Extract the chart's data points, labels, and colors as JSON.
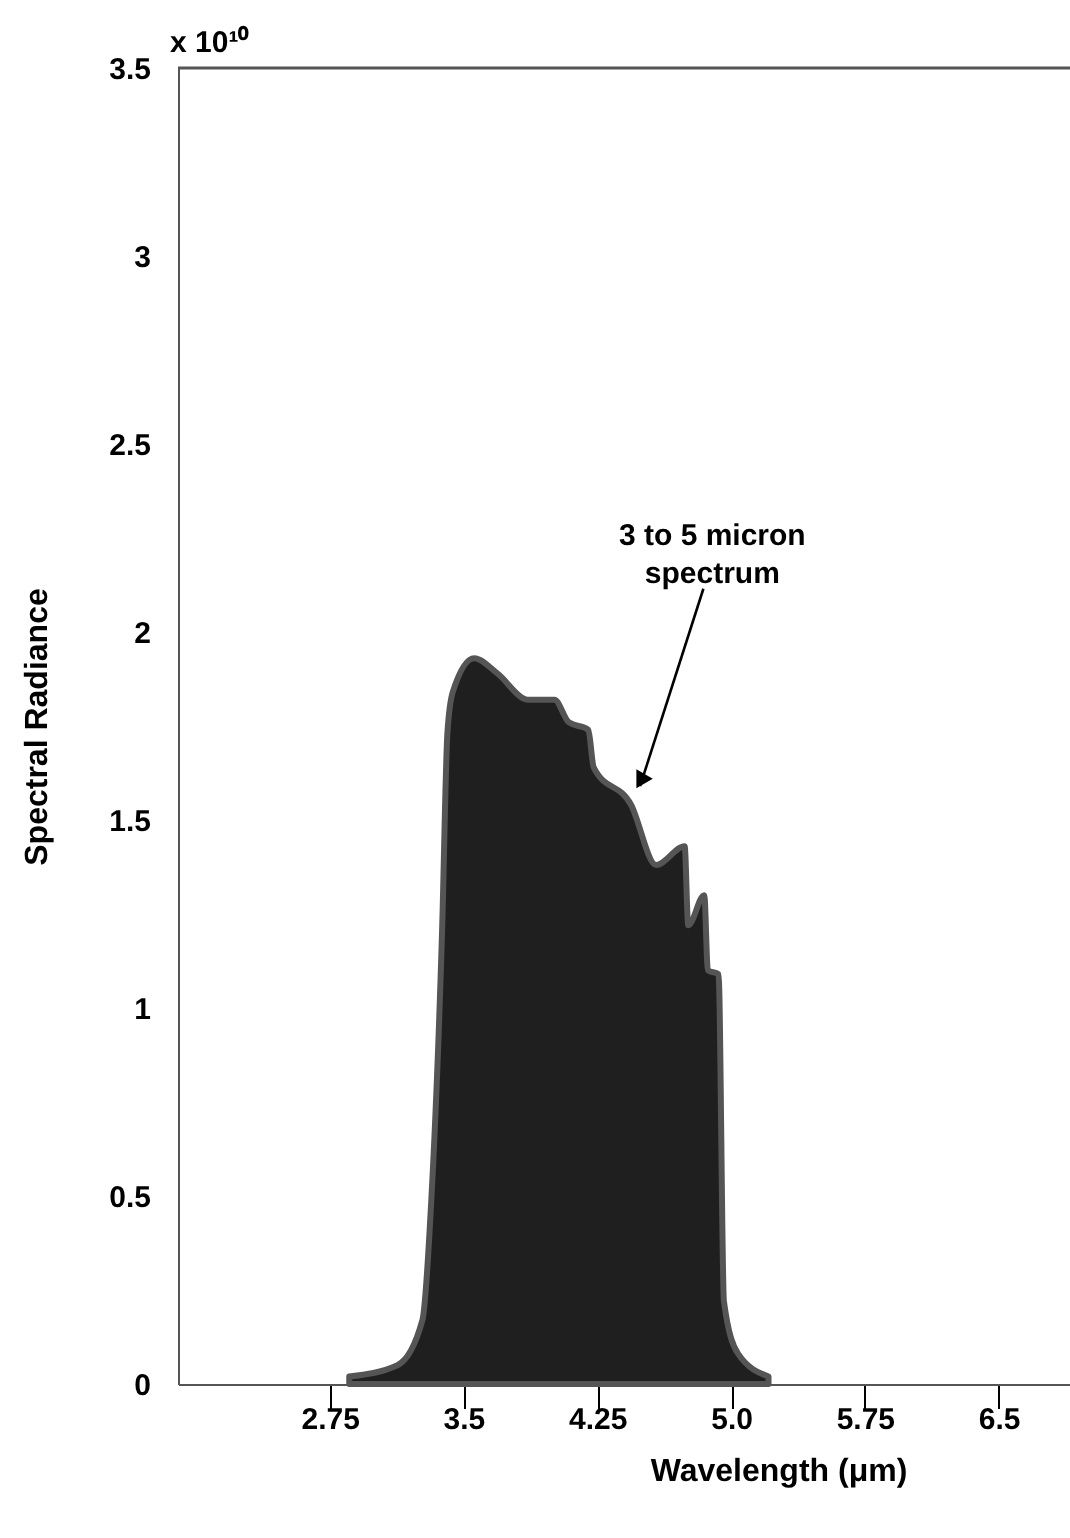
{
  "chart_data": {
    "type": "area",
    "xlabel": "Wavelength (μm)",
    "ylabel": "Spectral Radiance",
    "x": [
      2.86,
      3.13,
      3.27,
      3.32,
      3.38,
      3.41,
      3.44,
      3.56,
      3.69,
      3.86,
      4.01,
      4.09,
      4.2,
      4.23,
      4.44,
      4.58,
      4.74,
      4.76,
      4.85,
      4.87,
      4.93,
      4.96,
      5.04,
      5.21
    ],
    "series": [
      {
        "color": "#1f1f1f",
        "values": [
          0.02,
          0.05,
          0.17,
          0.49,
          1.2,
          1.73,
          1.84,
          1.93,
          1.89,
          1.82,
          1.82,
          1.76,
          1.74,
          1.64,
          1.54,
          1.38,
          1.43,
          1.22,
          1.3,
          1.1,
          1.09,
          0.22,
          0.08,
          0.02
        ]
      }
    ],
    "xlim": [
      1.9,
      6.9
    ],
    "xticks": [
      2.75,
      3.5,
      4.25,
      {
        "value": 5.0,
        "label": "5.0"
      },
      5.75,
      6.5
    ],
    "ylim": [
      0,
      3.5
    ],
    "yticks": [
      0,
      0.5,
      1,
      1.5,
      2,
      2.5,
      3,
      3.5
    ],
    "grid": false,
    "annotations": [
      "x 10¹⁰",
      {
        "text": "3 to 5 micron\nspectrum",
        "x": 4.47,
        "y": 1.55
      }
    ]
  }
}
